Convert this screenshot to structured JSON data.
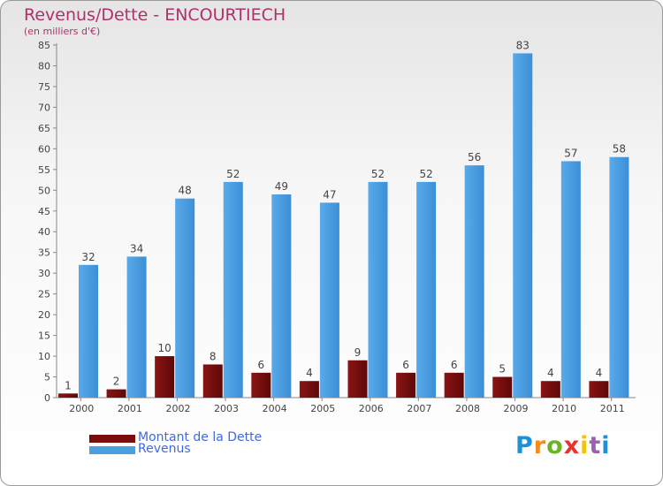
{
  "header": {
    "title": "Revenus/Dette - ENCOURTIECH",
    "subtitle": "(en milliers d'€)"
  },
  "legend": {
    "items": [
      {
        "label": "Montant de la Dette",
        "color": "#7a0c0c"
      },
      {
        "label": "Revenus",
        "color": "#4a9fe0"
      }
    ]
  },
  "logo": {
    "letters": [
      "P",
      "r",
      "o",
      "x",
      "i",
      "t",
      "i"
    ]
  },
  "chart_data": {
    "type": "bar",
    "categories": [
      "2000",
      "2001",
      "2002",
      "2003",
      "2004",
      "2005",
      "2006",
      "2007",
      "2008",
      "2009",
      "2010",
      "2011"
    ],
    "series": [
      {
        "name": "Montant de la Dette",
        "color": "#7a0c0c",
        "values": [
          1,
          2,
          10,
          8,
          6,
          4,
          9,
          6,
          6,
          5,
          4,
          4
        ]
      },
      {
        "name": "Revenus",
        "color": "#4a9fe0",
        "values": [
          32,
          34,
          48,
          52,
          49,
          47,
          52,
          52,
          56,
          83,
          57,
          58
        ]
      }
    ],
    "ylim": [
      0,
      85
    ],
    "ytick_step": 5,
    "grid": false
  }
}
